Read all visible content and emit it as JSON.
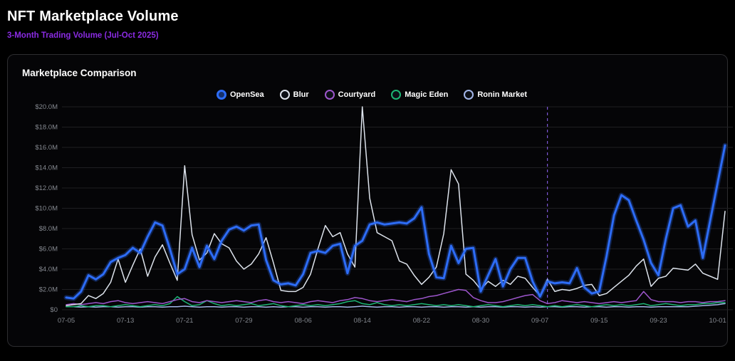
{
  "page": {
    "title": "NFT Marketplace Volume",
    "subtitle": "3-Month Trading Volume (Jul-Oct 2025)",
    "subtitle_color": "#8a2be2"
  },
  "card": {
    "title": "Marketplace Comparison"
  },
  "chart_data": {
    "type": "line",
    "title": "Marketplace Comparison",
    "grid": "horizontal",
    "legend_position": "top",
    "ylim": [
      0,
      20
    ],
    "y_unit": "million USD",
    "y_ticks": [
      {
        "value": 0,
        "label": "$0"
      },
      {
        "value": 2,
        "label": "$2.0M"
      },
      {
        "value": 4,
        "label": "$4.0M"
      },
      {
        "value": 6,
        "label": "$6.0M"
      },
      {
        "value": 8,
        "label": "$8.0M"
      },
      {
        "value": 10,
        "label": "$10.0M"
      },
      {
        "value": 12,
        "label": "$12.0M"
      },
      {
        "value": 14,
        "label": "$14.0M"
      },
      {
        "value": 16,
        "label": "$16.0M"
      },
      {
        "value": 18,
        "label": "$18.0M"
      },
      {
        "value": 20,
        "label": "$20.0M"
      }
    ],
    "x_tick_labels": [
      "07-05",
      "07-13",
      "07-21",
      "07-29",
      "08-06",
      "08-14",
      "08-22",
      "08-30",
      "09-07",
      "09-15",
      "09-23",
      "10-01"
    ],
    "annotation": {
      "type": "vline",
      "date": "09-08",
      "color": "#7c56d4",
      "style": "dashed"
    },
    "x": [
      "07-05",
      "07-06",
      "07-07",
      "07-08",
      "07-09",
      "07-10",
      "07-11",
      "07-12",
      "07-13",
      "07-14",
      "07-15",
      "07-16",
      "07-17",
      "07-18",
      "07-19",
      "07-20",
      "07-21",
      "07-22",
      "07-23",
      "07-24",
      "07-25",
      "07-26",
      "07-27",
      "07-28",
      "07-29",
      "07-30",
      "07-31",
      "08-01",
      "08-02",
      "08-03",
      "08-04",
      "08-05",
      "08-06",
      "08-07",
      "08-08",
      "08-09",
      "08-10",
      "08-11",
      "08-12",
      "08-13",
      "08-14",
      "08-15",
      "08-16",
      "08-17",
      "08-18",
      "08-19",
      "08-20",
      "08-21",
      "08-22",
      "08-23",
      "08-24",
      "08-25",
      "08-26",
      "08-27",
      "08-28",
      "08-29",
      "08-30",
      "08-31",
      "09-01",
      "09-02",
      "09-03",
      "09-04",
      "09-05",
      "09-06",
      "09-07",
      "09-08",
      "09-09",
      "09-10",
      "09-11",
      "09-12",
      "09-13",
      "09-14",
      "09-15",
      "09-16",
      "09-17",
      "09-18",
      "09-19",
      "09-20",
      "09-21",
      "09-22",
      "09-23",
      "09-24",
      "09-25",
      "09-26",
      "09-27",
      "09-28",
      "09-29",
      "09-30",
      "10-01",
      "10-02"
    ],
    "series": [
      {
        "name": "Ronin Market",
        "color": "#a3b6e8",
        "width": 1.5,
        "values": [
          0.3,
          0.3,
          0.25,
          0.3,
          0.25,
          0.3,
          0.3,
          0.25,
          0.3,
          0.3,
          0.25,
          0.3,
          0.3,
          0.25,
          0.3,
          0.3,
          0.35,
          0.3,
          0.25,
          0.3,
          0.3,
          0.25,
          0.3,
          0.3,
          0.25,
          0.3,
          0.3,
          0.25,
          0.3,
          0.25,
          0.3,
          0.3,
          0.25,
          0.3,
          0.3,
          0.25,
          0.3,
          0.3,
          0.25,
          0.3,
          0.35,
          0.3,
          0.25,
          0.3,
          0.3,
          0.25,
          0.3,
          0.3,
          0.25,
          0.3,
          0.3,
          0.25,
          0.3,
          0.3,
          0.25,
          0.3,
          0.25,
          0.3,
          0.3,
          0.25,
          0.3,
          0.3,
          0.25,
          0.3,
          0.25,
          0.3,
          0.3,
          0.25,
          0.3,
          0.3,
          0.25,
          0.3,
          0.3,
          0.25,
          0.3,
          0.3,
          0.25,
          0.3,
          0.3,
          0.25,
          0.3,
          0.3,
          0.3,
          0.3,
          0.3,
          0.35,
          0.4,
          0.45,
          0.5,
          0.6
        ]
      },
      {
        "name": "Magic Eden",
        "color": "#1db574",
        "width": 1.5,
        "values": [
          0.3,
          0.3,
          0.4,
          0.3,
          0.4,
          0.4,
          0.3,
          0.4,
          0.5,
          0.4,
          0.3,
          0.4,
          0.5,
          0.4,
          0.6,
          1.3,
          0.8,
          0.4,
          0.5,
          0.9,
          0.6,
          0.4,
          0.5,
          0.4,
          0.5,
          0.6,
          0.4,
          0.5,
          0.6,
          0.4,
          0.3,
          0.4,
          0.5,
          0.4,
          0.5,
          0.4,
          0.5,
          0.6,
          0.8,
          0.9,
          0.6,
          0.5,
          0.7,
          0.5,
          0.4,
          0.5,
          0.4,
          0.5,
          0.6,
          0.5,
          0.4,
          0.5,
          0.4,
          0.5,
          0.4,
          0.3,
          0.4,
          0.5,
          0.4,
          0.3,
          0.4,
          0.5,
          0.4,
          0.5,
          0.4,
          0.3,
          0.4,
          0.3,
          0.4,
          0.5,
          0.4,
          0.3,
          0.4,
          0.5,
          0.4,
          0.5,
          0.4,
          0.5,
          0.6,
          0.4,
          0.5,
          0.6,
          0.5,
          0.4,
          0.5,
          0.5,
          0.6,
          0.6,
          0.7,
          0.7
        ]
      },
      {
        "name": "Courtyard",
        "color": "#9d56cc",
        "width": 1.5,
        "values": [
          0.5,
          0.6,
          0.5,
          0.6,
          0.7,
          0.6,
          0.8,
          0.9,
          0.7,
          0.6,
          0.7,
          0.8,
          0.7,
          0.6,
          0.8,
          1.0,
          1.1,
          0.8,
          0.7,
          0.9,
          0.8,
          0.7,
          0.8,
          0.9,
          0.8,
          0.7,
          0.9,
          1.0,
          0.8,
          0.7,
          0.8,
          0.7,
          0.6,
          0.8,
          0.9,
          0.8,
          0.7,
          0.9,
          1.0,
          1.2,
          1.1,
          0.9,
          0.8,
          0.9,
          1.0,
          0.9,
          0.8,
          1.0,
          1.1,
          1.3,
          1.4,
          1.6,
          1.8,
          2.0,
          1.9,
          1.2,
          0.9,
          0.7,
          0.7,
          0.8,
          1.0,
          1.2,
          1.4,
          1.5,
          0.9,
          0.6,
          0.7,
          0.9,
          0.8,
          0.7,
          0.8,
          0.7,
          0.6,
          0.7,
          0.8,
          0.7,
          0.8,
          0.9,
          1.8,
          1.0,
          0.8,
          0.8,
          0.8,
          0.7,
          0.8,
          0.8,
          0.7,
          0.8,
          0.8,
          0.9
        ]
      },
      {
        "name": "Blur",
        "color": "#dde3ec",
        "width": 1.5,
        "values": [
          0.4,
          0.5,
          0.6,
          1.4,
          1.1,
          1.6,
          2.7,
          5.0,
          2.7,
          4.4,
          6.0,
          3.3,
          5.2,
          6.4,
          4.6,
          2.9,
          14.2,
          7.4,
          4.9,
          5.6,
          7.5,
          6.5,
          6.1,
          4.8,
          4.0,
          4.5,
          5.5,
          7.1,
          4.6,
          1.9,
          1.8,
          1.8,
          2.2,
          3.5,
          6.0,
          8.3,
          7.2,
          7.6,
          5.5,
          4.2,
          20.0,
          11.0,
          7.6,
          7.2,
          6.8,
          4.8,
          4.5,
          3.4,
          2.5,
          3.2,
          4.2,
          7.5,
          13.8,
          12.4,
          3.5,
          2.9,
          2.0,
          2.8,
          2.3,
          2.9,
          2.5,
          3.3,
          3.1,
          2.2,
          1.4,
          3.0,
          1.8,
          2.0,
          1.9,
          2.1,
          2.4,
          2.5,
          1.4,
          1.6,
          2.2,
          2.8,
          3.4,
          4.3,
          5.0,
          2.3,
          3.1,
          3.3,
          4.1,
          4.0,
          3.9,
          4.5,
          3.6,
          3.3,
          3.0,
          9.7
        ]
      },
      {
        "name": "OpenSea",
        "color": "#2d6cf6",
        "width": 3,
        "values": [
          1.2,
          1.1,
          1.8,
          3.4,
          3.0,
          3.5,
          4.7,
          5.1,
          5.4,
          6.1,
          5.6,
          7.2,
          8.6,
          8.3,
          6.0,
          3.5,
          4.0,
          6.1,
          4.2,
          6.3,
          5.0,
          6.8,
          7.9,
          8.2,
          7.8,
          8.3,
          8.4,
          4.9,
          2.9,
          2.5,
          2.6,
          2.4,
          3.5,
          5.6,
          5.8,
          5.6,
          6.3,
          6.5,
          3.6,
          6.3,
          6.8,
          8.4,
          8.6,
          8.4,
          8.5,
          8.6,
          8.5,
          9.0,
          10.1,
          5.5,
          3.2,
          3.1,
          6.3,
          4.6,
          6.0,
          6.1,
          1.8,
          3.4,
          5.0,
          2.3,
          4.0,
          5.1,
          5.1,
          2.8,
          1.3,
          2.8,
          2.6,
          2.7,
          2.6,
          4.1,
          2.2,
          1.6,
          1.8,
          5.3,
          9.3,
          11.3,
          10.8,
          8.8,
          6.9,
          4.6,
          3.4,
          7.0,
          10.0,
          10.3,
          8.2,
          8.8,
          5.1,
          8.8,
          12.5,
          16.2
        ]
      }
    ],
    "legend_order": [
      "OpenSea",
      "Blur",
      "Courtyard",
      "Magic Eden",
      "Ronin Market"
    ]
  }
}
